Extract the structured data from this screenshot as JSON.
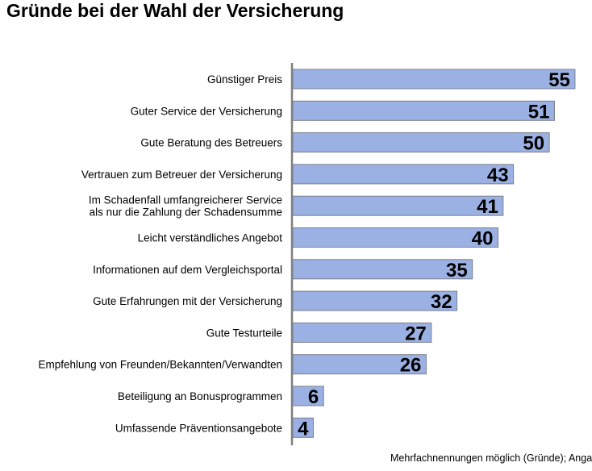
{
  "title": "Gründe bei der Wahl der Versicherung",
  "footnote": "Mehrfachnennungen möglich (Gründe); Angaben in Prozent",
  "colors": {
    "bar_fill": "#9bb1e4",
    "bar_stroke": "#7b7f8c",
    "axis": "#7f7f7f",
    "text": "#000000"
  },
  "chart_data": {
    "type": "bar",
    "orientation": "horizontal",
    "title": "Gründe bei der Wahl der Versicherung",
    "xlim": [
      0,
      58
    ],
    "grid": false,
    "legend": "none",
    "categories": [
      [
        "Günstiger Preis"
      ],
      [
        "Guter Service der Versicherung"
      ],
      [
        "Gute Beratung des Betreuers"
      ],
      [
        "Vertrauen zum Betreuer der Versicherung"
      ],
      [
        "Im Schadenfall umfangreicherer Service",
        "als nur die Zahlung der Schadensumme"
      ],
      [
        "Leicht verständliches Angebot"
      ],
      [
        "Informationen auf dem Vergleichsportal"
      ],
      [
        "Gute Erfahrungen mit der Versicherung"
      ],
      [
        "Gute Testurteile"
      ],
      [
        "Empfehlung von Freunden/Bekannten/Verwandten"
      ],
      [
        "Beteiligung an Bonusprogrammen"
      ],
      [
        "Umfassende Präventionsangebote"
      ]
    ],
    "values": [
      55,
      51,
      50,
      43,
      41,
      40,
      35,
      32,
      27,
      26,
      6,
      4
    ]
  }
}
